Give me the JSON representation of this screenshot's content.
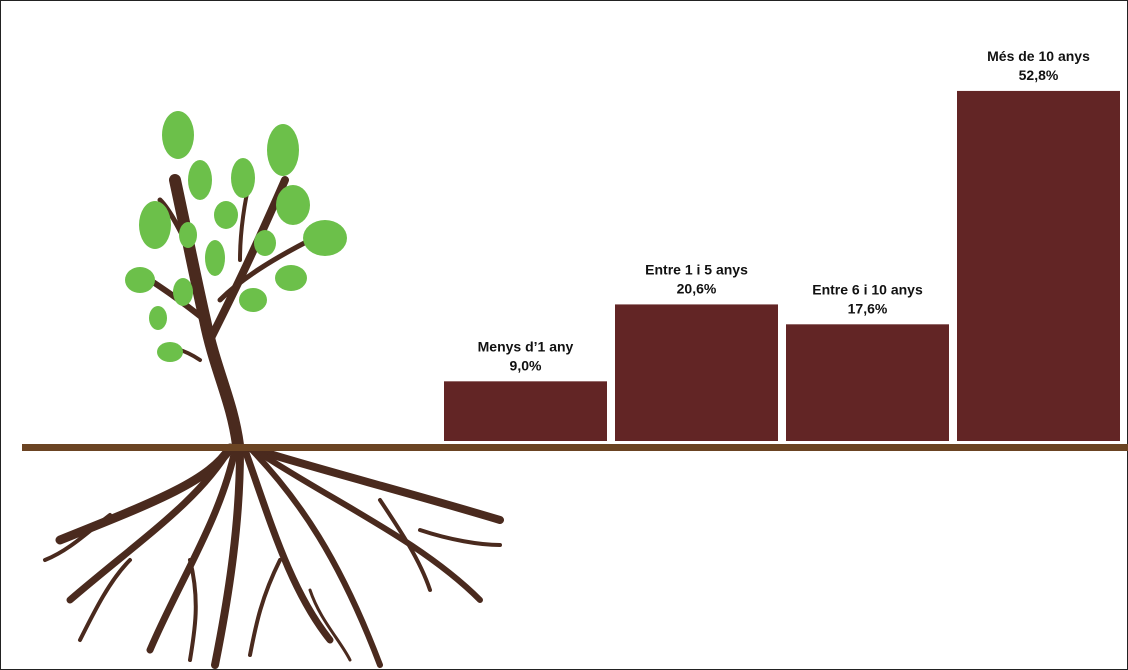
{
  "chart_data": {
    "type": "bar",
    "categories": [
      "Menys d’1 any",
      "Entre 1 i 5 anys",
      "Entre 6 i 10 anys",
      "Més de 10 anys"
    ],
    "values": [
      9.0,
      20.6,
      17.6,
      52.8
    ],
    "value_labels": [
      "9,0%",
      "20,6%",
      "17,6%",
      "52,8%"
    ],
    "color": "#622525"
  }
}
